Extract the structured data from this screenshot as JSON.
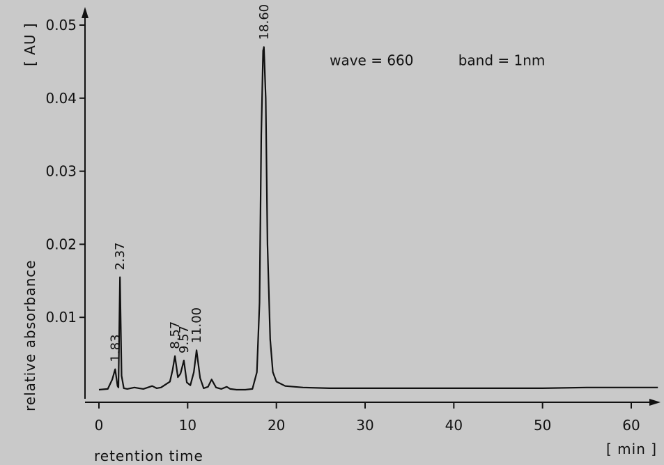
{
  "chart_data": {
    "type": "line",
    "xlabel": "retention time",
    "xunit": "[ min ]",
    "ylabel": "relative absorbance",
    "yunit": "[ AU ]",
    "xlim": [
      0,
      63
    ],
    "ylim": [
      0,
      0.051
    ],
    "x_ticks": [
      0,
      10,
      20,
      30,
      40,
      50,
      60
    ],
    "x_tick_labels": [
      "0",
      "10",
      "20",
      "30",
      "40",
      "50",
      "60"
    ],
    "y_ticks": [
      0.01,
      0.02,
      0.03,
      0.04,
      0.05
    ],
    "y_tick_labels": [
      "0.01",
      "0.02",
      "0.03",
      "0.04",
      "0.05"
    ],
    "annotations": [
      {
        "text": "wave = 660",
        "x": 26,
        "y": 0.0445
      },
      {
        "text": "band = 1nm",
        "x": 40.5,
        "y": 0.0445
      }
    ],
    "series": [
      {
        "x": [
          0,
          1.0,
          1.5,
          1.83,
          2.1,
          2.2,
          2.37,
          2.55,
          2.8,
          3.2,
          4.0,
          4.5,
          5.0,
          6.0,
          6.5,
          7.0,
          8.0,
          8.3,
          8.57,
          8.9,
          9.2,
          9.57,
          9.9,
          10.3,
          10.7,
          11.0,
          11.4,
          11.8,
          12.3,
          12.7,
          13.2,
          13.8,
          14.4,
          14.8,
          15.5,
          16.5,
          17.3,
          17.8,
          18.1,
          18.3,
          18.5,
          18.6,
          18.8,
          19.0,
          19.3,
          19.6,
          20.0,
          21.0,
          23.0,
          26.0,
          30.0,
          35.0,
          40.0,
          45.0,
          50.0,
          55.0,
          60.0,
          63.0
        ],
        "y": [
          0.0001,
          0.0002,
          0.0015,
          0.0029,
          0.0006,
          0.0004,
          0.0155,
          0.002,
          0.0003,
          0.0002,
          0.0004,
          0.0003,
          0.0002,
          0.0006,
          0.0003,
          0.0004,
          0.0012,
          0.0028,
          0.0047,
          0.0018,
          0.0023,
          0.0041,
          0.0011,
          0.0007,
          0.0025,
          0.0055,
          0.0017,
          0.0003,
          0.0005,
          0.0015,
          0.0004,
          0.0002,
          0.0005,
          0.0002,
          0.0001,
          0.0001,
          0.0002,
          0.0025,
          0.012,
          0.035,
          0.0465,
          0.047,
          0.04,
          0.02,
          0.007,
          0.0025,
          0.0012,
          0.0006,
          0.0004,
          0.0003,
          0.0003,
          0.0003,
          0.0003,
          0.0003,
          0.0003,
          0.0004,
          0.0004,
          0.0004
        ]
      }
    ],
    "peak_labels": [
      {
        "text": "1.83",
        "x": 1.83,
        "y": 0.0029
      },
      {
        "text": "2.37",
        "x": 2.37,
        "y": 0.0155
      },
      {
        "text": "8.57",
        "x": 8.57,
        "y": 0.0047
      },
      {
        "text": "9.57",
        "x": 9.57,
        "y": 0.0041
      },
      {
        "text": "11.00",
        "x": 11.0,
        "y": 0.0055
      },
      {
        "text": "18.60",
        "x": 18.6,
        "y": 0.047
      }
    ],
    "colors": {
      "line": "#111111",
      "background": "#c9c9c9"
    }
  }
}
